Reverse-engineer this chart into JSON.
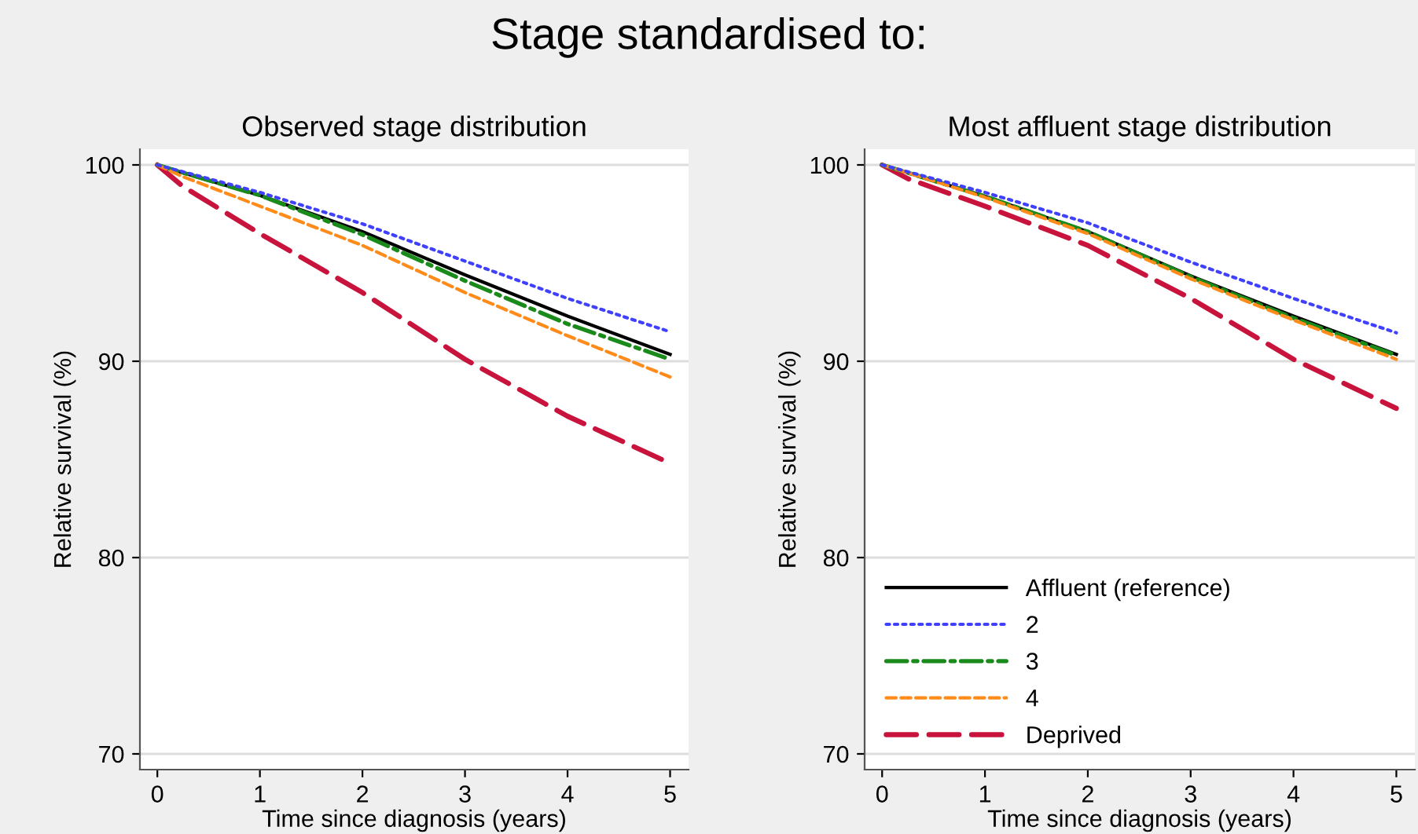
{
  "chart_data": [
    {
      "type": "line",
      "title": "Observed stage distribution",
      "xlabel": "Time since diagnosis (years)",
      "ylabel": "Relative survival (%)",
      "annotations": [
        "Stage standardised to:"
      ],
      "x": [
        0,
        0.25,
        1,
        2,
        3,
        4,
        5
      ],
      "xlim": [
        -0.17,
        5.18
      ],
      "xticks": [
        0,
        1,
        2,
        3,
        4,
        5
      ],
      "ylim": [
        69.2,
        100.8
      ],
      "yticks": [
        70,
        80,
        90,
        100
      ],
      "grid": "y",
      "series": [
        {
          "color": "#000000",
          "line_style": "solid",
          "values": [
            100,
            99.6,
            98.45,
            96.6,
            94.4,
            92.3,
            90.35
          ]
        },
        {
          "color": "#4040ff",
          "line_style": "dotted",
          "values": [
            100,
            99.65,
            98.6,
            97.0,
            95.1,
            93.2,
            91.5
          ]
        },
        {
          "color": "#1a8a1a",
          "line_style": "dashdot",
          "values": [
            100,
            99.6,
            98.45,
            96.45,
            94.1,
            91.9,
            90.1
          ]
        },
        {
          "color": "#ff8c1a",
          "line_style": "dashed",
          "values": [
            100,
            99.4,
            97.9,
            95.9,
            93.5,
            91.3,
            89.2
          ]
        },
        {
          "color": "#c8143c",
          "line_style": "longdashed",
          "values": [
            100,
            98.9,
            96.5,
            93.5,
            90.1,
            87.2,
            84.8
          ]
        }
      ]
    },
    {
      "type": "line",
      "title": "Most affluent stage distribution",
      "xlabel": "Time since diagnosis (years)",
      "ylabel": "Relative survival (%)",
      "x": [
        0,
        0.25,
        1,
        2,
        3,
        4,
        5
      ],
      "xlim": [
        -0.17,
        5.18
      ],
      "xticks": [
        0,
        1,
        2,
        3,
        4,
        5
      ],
      "ylim": [
        69.2,
        100.8
      ],
      "yticks": [
        70,
        80,
        90,
        100
      ],
      "grid": "y",
      "legend": "bottom left",
      "series": [
        {
          "name": "Affluent (reference)",
          "color": "#000000",
          "line_style": "solid",
          "values": [
            100,
            99.6,
            98.4,
            96.6,
            94.35,
            92.3,
            90.35
          ]
        },
        {
          "name": "2",
          "color": "#4040ff",
          "line_style": "dotted",
          "values": [
            100,
            99.65,
            98.6,
            97.05,
            95.05,
            93.2,
            91.45
          ]
        },
        {
          "name": "3",
          "color": "#1a8a1a",
          "line_style": "dashdot",
          "values": [
            100,
            99.6,
            98.4,
            96.6,
            94.3,
            92.2,
            90.3
          ]
        },
        {
          "name": "4",
          "color": "#ff8c1a",
          "line_style": "dashed",
          "values": [
            100,
            99.6,
            98.35,
            96.5,
            94.2,
            92.1,
            90.1
          ]
        },
        {
          "name": "Deprived",
          "color": "#c8143c",
          "line_style": "longdashed",
          "values": [
            100,
            99.3,
            97.9,
            95.9,
            93.2,
            90.1,
            87.6
          ]
        }
      ]
    }
  ]
}
